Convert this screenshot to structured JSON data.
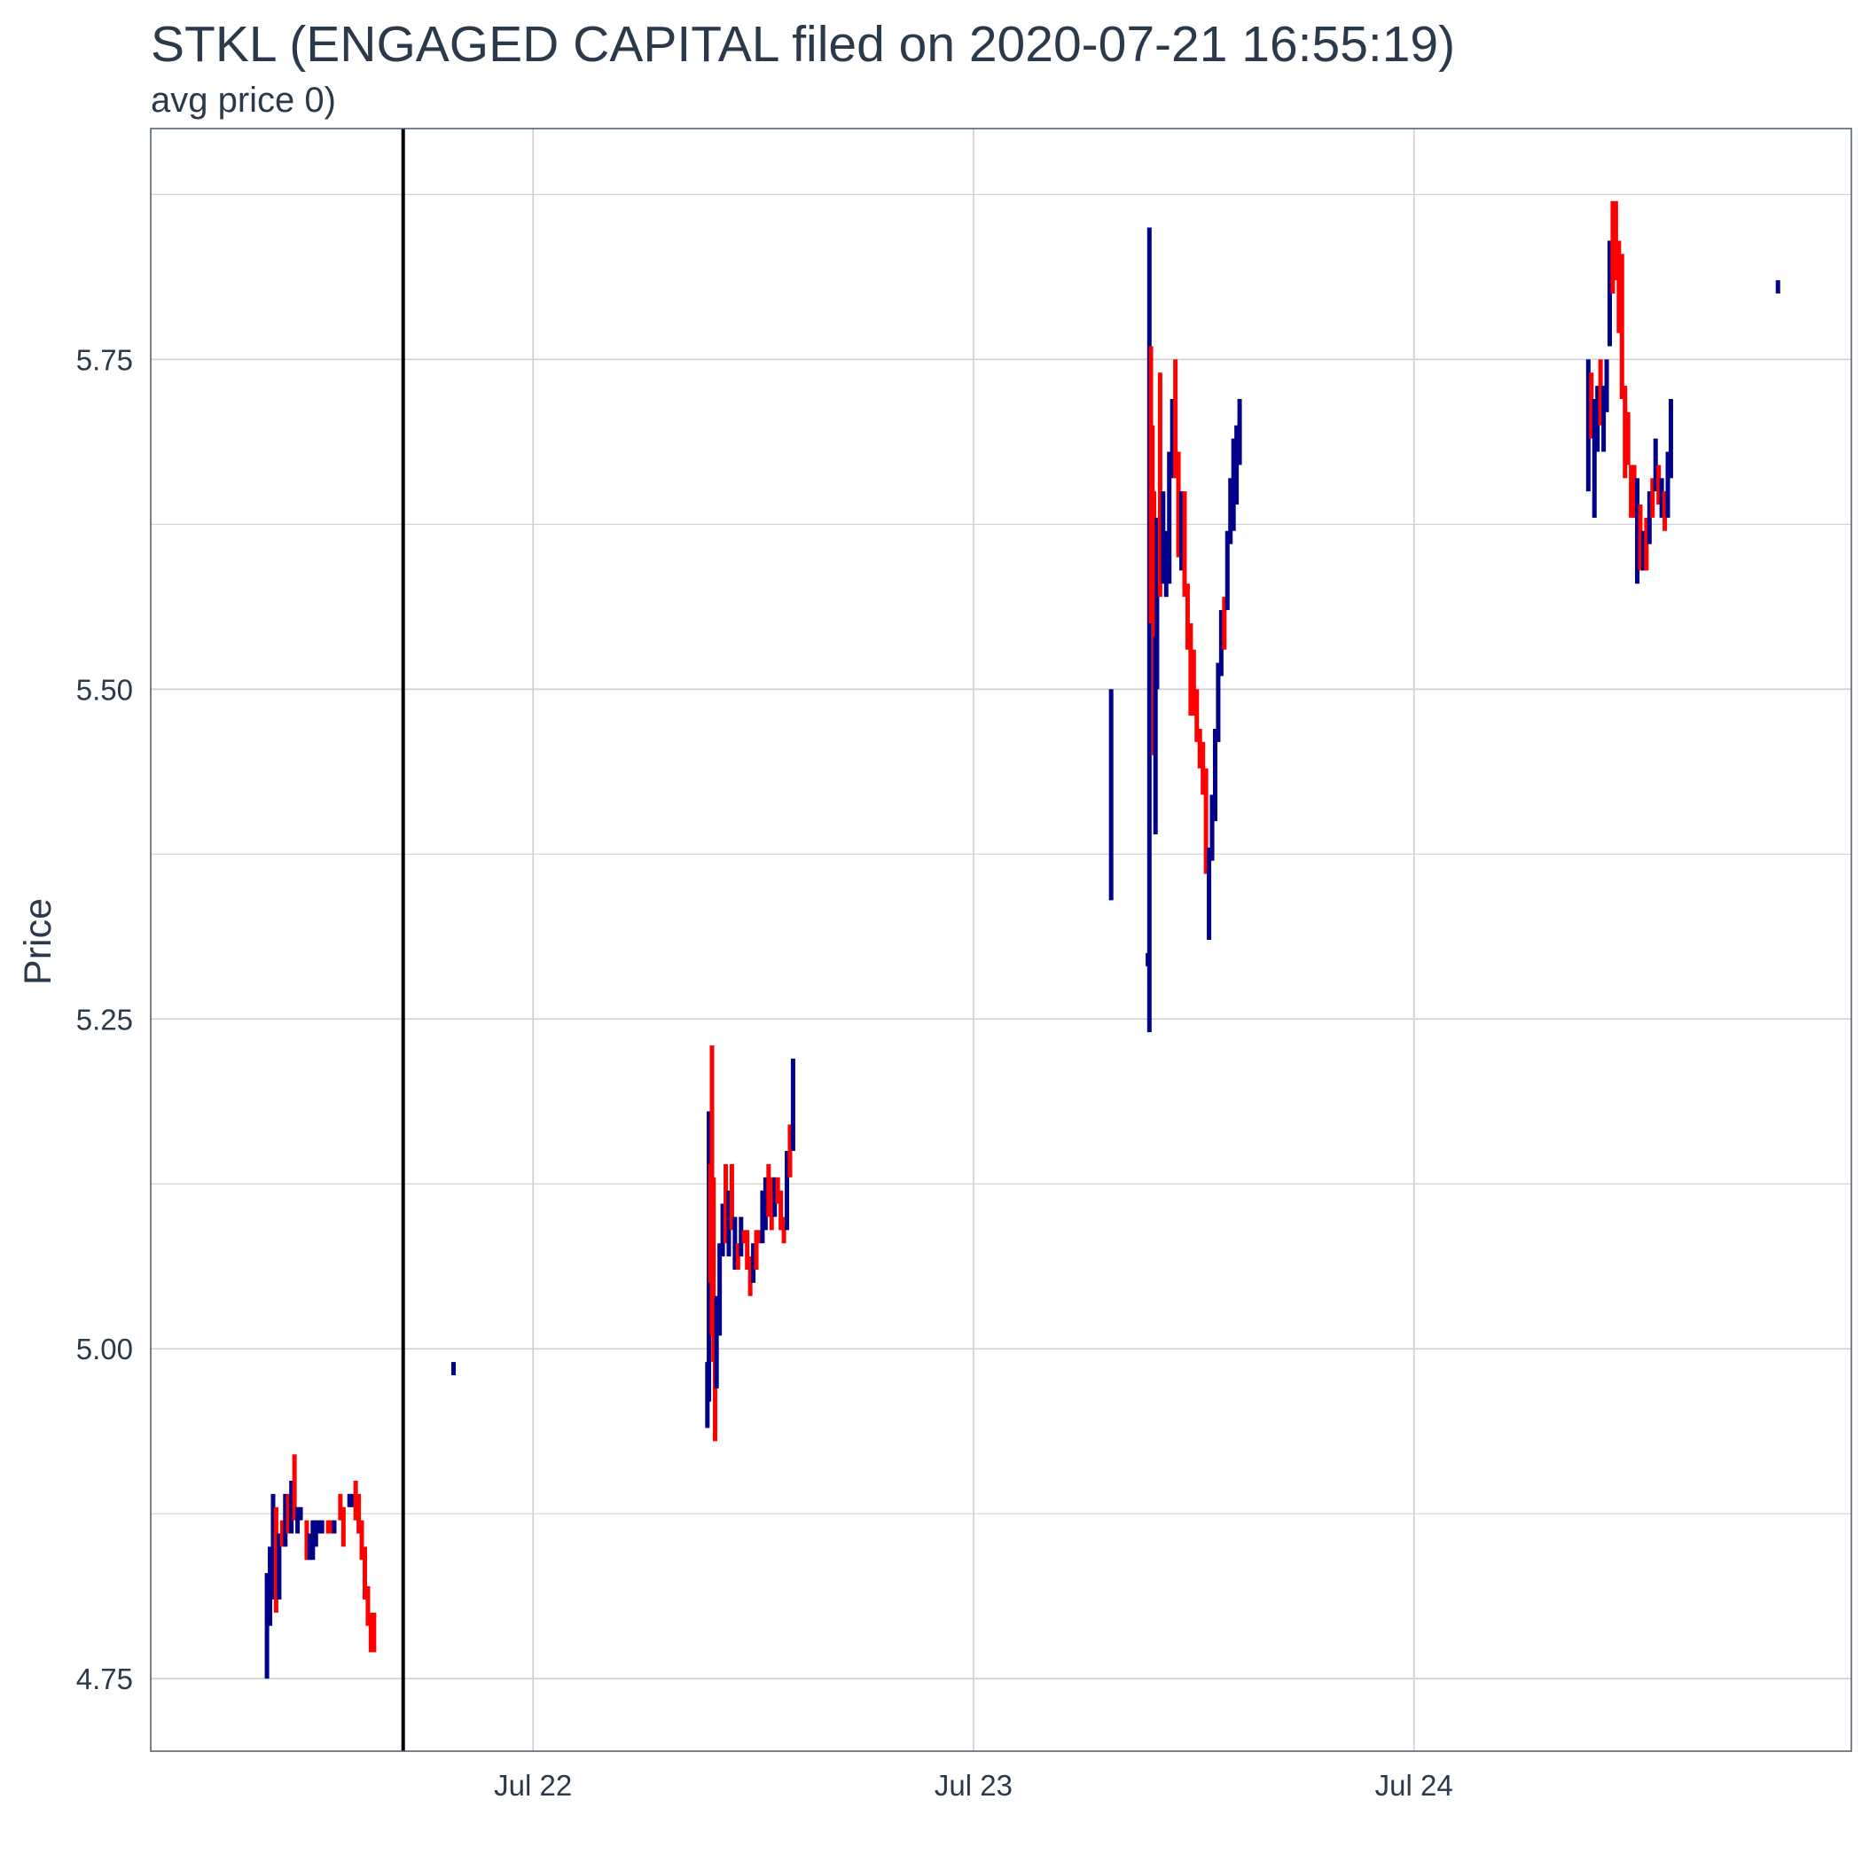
{
  "chart_data": {
    "type": "candlestick",
    "title": "STKL (ENGAGED CAPITAL filed on 2020-07-21 16:55:19)",
    "subtitle": "avg price 0)",
    "ylabel": "Price",
    "xlabel": "",
    "ylim": [
      4.695,
      5.925
    ],
    "xlim": [
      "2020-07-21T03:10",
      "2020-07-24T23:50"
    ],
    "y_ticks": [
      4.75,
      5.0,
      5.25,
      5.5,
      5.75
    ],
    "y_tick_labels": [
      "4.75",
      "5.00",
      "5.25",
      "5.50",
      "5.75"
    ],
    "x_ticks": [
      "2020-07-22T00:00",
      "2020-07-23T00:00",
      "2020-07-24T00:00"
    ],
    "x_tick_labels": [
      "Jul 22",
      "Jul 23",
      "Jul 24"
    ],
    "grid": true,
    "event_line": {
      "x": "2020-07-21T16:55:19"
    },
    "colors": {
      "up": "#00008b",
      "down": "#ff0000",
      "event": "#000000",
      "grid": "#d3d3d3",
      "frame": "#4a5a6a"
    },
    "candles": [
      [
        "2020-07-21T09:30",
        4.75,
        4.83,
        "up"
      ],
      [
        "2020-07-21T09:40",
        4.79,
        4.85,
        "up"
      ],
      [
        "2020-07-21T09:50",
        4.81,
        4.89,
        "up"
      ],
      [
        "2020-07-21T10:00",
        4.8,
        4.88,
        "down"
      ],
      [
        "2020-07-21T10:10",
        4.81,
        4.86,
        "up"
      ],
      [
        "2020-07-21T10:20",
        4.85,
        4.87,
        "down"
      ],
      [
        "2020-07-21T10:30",
        4.85,
        4.89,
        "up"
      ],
      [
        "2020-07-21T10:40",
        4.86,
        4.89,
        "down"
      ],
      [
        "2020-07-21T10:50",
        4.86,
        4.9,
        "up"
      ],
      [
        "2020-07-21T11:00",
        4.87,
        4.92,
        "down"
      ],
      [
        "2020-07-21T11:10",
        4.86,
        4.88,
        "up"
      ],
      [
        "2020-07-21T11:20",
        4.87,
        4.88,
        "up"
      ],
      [
        "2020-07-21T11:40",
        4.84,
        4.87,
        "down"
      ],
      [
        "2020-07-21T11:50",
        4.84,
        4.86,
        "up"
      ],
      [
        "2020-07-21T12:00",
        4.84,
        4.87,
        "up"
      ],
      [
        "2020-07-21T12:10",
        4.85,
        4.87,
        "up"
      ],
      [
        "2020-07-21T12:20",
        4.86,
        4.87,
        "up"
      ],
      [
        "2020-07-21T12:30",
        4.86,
        4.87,
        "up"
      ],
      [
        "2020-07-21T12:50",
        4.86,
        4.87,
        "down"
      ],
      [
        "2020-07-21T13:00",
        4.86,
        4.87,
        "down"
      ],
      [
        "2020-07-21T13:10",
        4.86,
        4.87,
        "up"
      ],
      [
        "2020-07-21T13:30",
        4.87,
        4.89,
        "down"
      ],
      [
        "2020-07-21T13:40",
        4.85,
        4.88,
        "down"
      ],
      [
        "2020-07-21T14:00",
        4.88,
        4.89,
        "up"
      ],
      [
        "2020-07-21T14:10",
        4.88,
        4.89,
        "up"
      ],
      [
        "2020-07-21T14:20",
        4.87,
        4.9,
        "down"
      ],
      [
        "2020-07-21T14:30",
        4.86,
        4.89,
        "down"
      ],
      [
        "2020-07-21T14:40",
        4.84,
        4.87,
        "down"
      ],
      [
        "2020-07-21T14:50",
        4.81,
        4.85,
        "down"
      ],
      [
        "2020-07-21T15:00",
        4.79,
        4.82,
        "down"
      ],
      [
        "2020-07-21T15:10",
        4.77,
        4.8,
        "down"
      ],
      [
        "2020-07-21T15:20",
        4.77,
        4.8,
        "down"
      ],
      [
        "2020-07-21T19:40",
        4.98,
        4.99,
        "up"
      ],
      [
        "2020-07-22T09:30",
        4.94,
        4.99,
        "up"
      ],
      [
        "2020-07-22T09:35",
        4.96,
        5.18,
        "up"
      ],
      [
        "2020-07-22T09:40",
        5.05,
        5.14,
        "down"
      ],
      [
        "2020-07-22T09:45",
        5.01,
        5.23,
        "down"
      ],
      [
        "2020-07-22T09:50",
        4.99,
        5.13,
        "down"
      ],
      [
        "2020-07-22T09:55",
        4.93,
        5.03,
        "down"
      ],
      [
        "2020-07-22T10:00",
        4.97,
        5.04,
        "up"
      ],
      [
        "2020-07-22T10:10",
        5.01,
        5.08,
        "up"
      ],
      [
        "2020-07-22T10:20",
        5.07,
        5.11,
        "up"
      ],
      [
        "2020-07-22T10:30",
        5.08,
        5.14,
        "down"
      ],
      [
        "2020-07-22T10:40",
        5.07,
        5.12,
        "up"
      ],
      [
        "2020-07-22T10:50",
        5.09,
        5.14,
        "down"
      ],
      [
        "2020-07-22T11:00",
        5.06,
        5.1,
        "up"
      ],
      [
        "2020-07-22T11:10",
        5.06,
        5.08,
        "down"
      ],
      [
        "2020-07-22T11:20",
        5.07,
        5.1,
        "up"
      ],
      [
        "2020-07-22T11:30",
        5.08,
        5.09,
        "down"
      ],
      [
        "2020-07-22T11:40",
        5.06,
        5.09,
        "down"
      ],
      [
        "2020-07-22T11:50",
        5.04,
        5.07,
        "down"
      ],
      [
        "2020-07-22T12:00",
        5.05,
        5.08,
        "up"
      ],
      [
        "2020-07-22T12:10",
        5.06,
        5.09,
        "down"
      ],
      [
        "2020-07-22T12:20",
        5.08,
        5.09,
        "down"
      ],
      [
        "2020-07-22T12:30",
        5.08,
        5.12,
        "up"
      ],
      [
        "2020-07-22T12:40",
        5.09,
        5.13,
        "up"
      ],
      [
        "2020-07-22T12:50",
        5.1,
        5.14,
        "down"
      ],
      [
        "2020-07-22T13:00",
        5.09,
        5.13,
        "down"
      ],
      [
        "2020-07-22T13:10",
        5.1,
        5.13,
        "up"
      ],
      [
        "2020-07-22T13:20",
        5.11,
        5.13,
        "down"
      ],
      [
        "2020-07-22T13:30",
        5.09,
        5.12,
        "down"
      ],
      [
        "2020-07-22T13:40",
        5.08,
        5.1,
        "down"
      ],
      [
        "2020-07-22T13:50",
        5.09,
        5.15,
        "up"
      ],
      [
        "2020-07-22T14:00",
        5.13,
        5.17,
        "down"
      ],
      [
        "2020-07-22T14:10",
        5.15,
        5.22,
        "up"
      ],
      [
        "2020-07-23T07:30",
        5.34,
        5.5,
        "up"
      ],
      [
        "2020-07-23T09:30",
        5.29,
        5.3,
        "up"
      ],
      [
        "2020-07-23T09:35",
        5.24,
        5.85,
        "up"
      ],
      [
        "2020-07-23T09:40",
        5.55,
        5.76,
        "down"
      ],
      [
        "2020-07-23T09:45",
        5.56,
        5.7,
        "down"
      ],
      [
        "2020-07-23T09:50",
        5.45,
        5.65,
        "down"
      ],
      [
        "2020-07-23T09:55",
        5.39,
        5.54,
        "up"
      ],
      [
        "2020-07-23T10:00",
        5.5,
        5.63,
        "up"
      ],
      [
        "2020-07-23T10:10",
        5.57,
        5.74,
        "down"
      ],
      [
        "2020-07-23T10:20",
        5.58,
        5.65,
        "up"
      ],
      [
        "2020-07-23T10:30",
        5.57,
        5.62,
        "up"
      ],
      [
        "2020-07-23T10:40",
        5.58,
        5.68,
        "up"
      ],
      [
        "2020-07-23T10:50",
        5.66,
        5.72,
        "up"
      ],
      [
        "2020-07-23T11:00",
        5.66,
        5.75,
        "down"
      ],
      [
        "2020-07-23T11:10",
        5.6,
        5.68,
        "down"
      ],
      [
        "2020-07-23T11:20",
        5.59,
        5.65,
        "up"
      ],
      [
        "2020-07-23T11:30",
        5.57,
        5.65,
        "down"
      ],
      [
        "2020-07-23T11:40",
        5.53,
        5.58,
        "down"
      ],
      [
        "2020-07-23T11:50",
        5.48,
        5.55,
        "down"
      ],
      [
        "2020-07-23T12:00",
        5.48,
        5.53,
        "down"
      ],
      [
        "2020-07-23T12:10",
        5.46,
        5.5,
        "down"
      ],
      [
        "2020-07-23T12:20",
        5.44,
        5.47,
        "down"
      ],
      [
        "2020-07-23T12:30",
        5.42,
        5.46,
        "down"
      ],
      [
        "2020-07-23T12:40",
        5.36,
        5.44,
        "down"
      ],
      [
        "2020-07-23T12:50",
        5.31,
        5.38,
        "up"
      ],
      [
        "2020-07-23T13:00",
        5.37,
        5.42,
        "up"
      ],
      [
        "2020-07-23T13:10",
        5.4,
        5.47,
        "up"
      ],
      [
        "2020-07-23T13:20",
        5.46,
        5.52,
        "up"
      ],
      [
        "2020-07-23T13:30",
        5.51,
        5.56,
        "up"
      ],
      [
        "2020-07-23T13:40",
        5.53,
        5.57,
        "down"
      ],
      [
        "2020-07-23T13:50",
        5.56,
        5.62,
        "up"
      ],
      [
        "2020-07-23T14:00",
        5.61,
        5.66,
        "up"
      ],
      [
        "2020-07-23T14:10",
        5.62,
        5.69,
        "up"
      ],
      [
        "2020-07-23T14:20",
        5.64,
        5.7,
        "up"
      ],
      [
        "2020-07-23T14:30",
        5.67,
        5.72,
        "up"
      ],
      [
        "2020-07-24T09:30",
        5.65,
        5.75,
        "up"
      ],
      [
        "2020-07-24T09:40",
        5.69,
        5.74,
        "down"
      ],
      [
        "2020-07-24T09:50",
        5.63,
        5.72,
        "up"
      ],
      [
        "2020-07-24T10:00",
        5.68,
        5.73,
        "up"
      ],
      [
        "2020-07-24T10:10",
        5.7,
        5.75,
        "down"
      ],
      [
        "2020-07-24T10:20",
        5.68,
        5.73,
        "up"
      ],
      [
        "2020-07-24T10:30",
        5.71,
        5.75,
        "up"
      ],
      [
        "2020-07-24T10:40",
        5.76,
        5.84,
        "up"
      ],
      [
        "2020-07-24T10:50",
        5.8,
        5.87,
        "down"
      ],
      [
        "2020-07-24T11:00",
        5.81,
        5.87,
        "down"
      ],
      [
        "2020-07-24T11:10",
        5.77,
        5.84,
        "down"
      ],
      [
        "2020-07-24T11:20",
        5.72,
        5.83,
        "down"
      ],
      [
        "2020-07-24T11:30",
        5.66,
        5.73,
        "down"
      ],
      [
        "2020-07-24T11:40",
        5.67,
        5.71,
        "down"
      ],
      [
        "2020-07-24T11:50",
        5.63,
        5.67,
        "down"
      ],
      [
        "2020-07-24T12:00",
        5.63,
        5.67,
        "down"
      ],
      [
        "2020-07-24T12:10",
        5.58,
        5.66,
        "up"
      ],
      [
        "2020-07-24T12:20",
        5.59,
        5.64,
        "down"
      ],
      [
        "2020-07-24T12:30",
        5.59,
        5.62,
        "up"
      ],
      [
        "2020-07-24T12:40",
        5.59,
        5.63,
        "down"
      ],
      [
        "2020-07-24T12:50",
        5.61,
        5.65,
        "up"
      ],
      [
        "2020-07-24T13:00",
        5.63,
        5.66,
        "down"
      ],
      [
        "2020-07-24T13:10",
        5.65,
        5.69,
        "up"
      ],
      [
        "2020-07-24T13:20",
        5.64,
        5.67,
        "down"
      ],
      [
        "2020-07-24T13:30",
        5.63,
        5.66,
        "up"
      ],
      [
        "2020-07-24T13:40",
        5.62,
        5.65,
        "down"
      ],
      [
        "2020-07-24T13:50",
        5.63,
        5.68,
        "up"
      ],
      [
        "2020-07-24T14:00",
        5.66,
        5.72,
        "up"
      ],
      [
        "2020-07-24T19:50",
        5.8,
        5.81,
        "up"
      ]
    ]
  }
}
